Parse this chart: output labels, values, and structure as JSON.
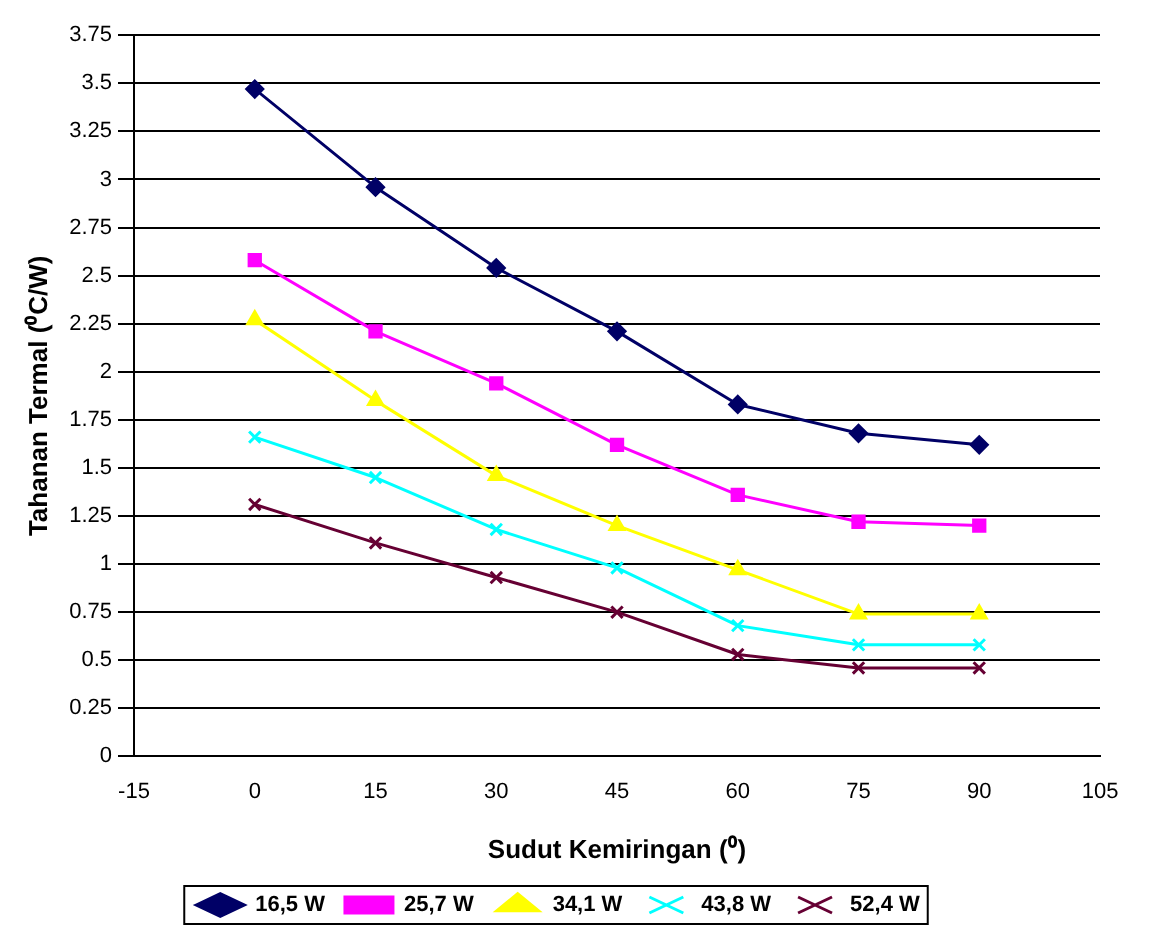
{
  "chart_data": {
    "type": "line",
    "xlabel": "Sudut Kemiringan (⁰)",
    "ylabel": "Tahanan Termal (⁰C/W)",
    "x": [
      0,
      15,
      30,
      45,
      60,
      75,
      90
    ],
    "series": [
      {
        "name": "16,5 W",
        "color": "#000066",
        "marker": "diamond",
        "values": [
          3.47,
          2.96,
          2.54,
          2.21,
          1.83,
          1.68,
          1.62
        ]
      },
      {
        "name": "25,7 W",
        "color": "#ff00ff",
        "marker": "square",
        "values": [
          2.58,
          2.21,
          1.94,
          1.62,
          1.36,
          1.22,
          1.2
        ]
      },
      {
        "name": "34,1 W",
        "color": "#ffff00",
        "marker": "triangle",
        "values": [
          2.27,
          1.85,
          1.46,
          1.2,
          0.97,
          0.74,
          0.74
        ]
      },
      {
        "name": "43,8 W",
        "color": "#00ffff",
        "marker": "cross",
        "values": [
          1.66,
          1.45,
          1.18,
          0.98,
          0.68,
          0.58,
          0.58
        ]
      },
      {
        "name": "52,4 W",
        "color": "#660033",
        "marker": "cross",
        "values": [
          1.31,
          1.11,
          0.93,
          0.75,
          0.53,
          0.46,
          0.46
        ]
      }
    ],
    "xlim": [
      -15,
      105
    ],
    "xticks": [
      -15,
      0,
      15,
      30,
      45,
      60,
      75,
      90,
      105
    ],
    "ylim": [
      0,
      3.75
    ],
    "yticks": [
      0,
      0.25,
      0.5,
      0.75,
      1,
      1.25,
      1.5,
      1.75,
      2,
      2.25,
      2.5,
      2.75,
      3,
      3.25,
      3.5,
      3.75
    ],
    "grid": "y",
    "legend": "bottom",
    "line_style": "solid"
  }
}
